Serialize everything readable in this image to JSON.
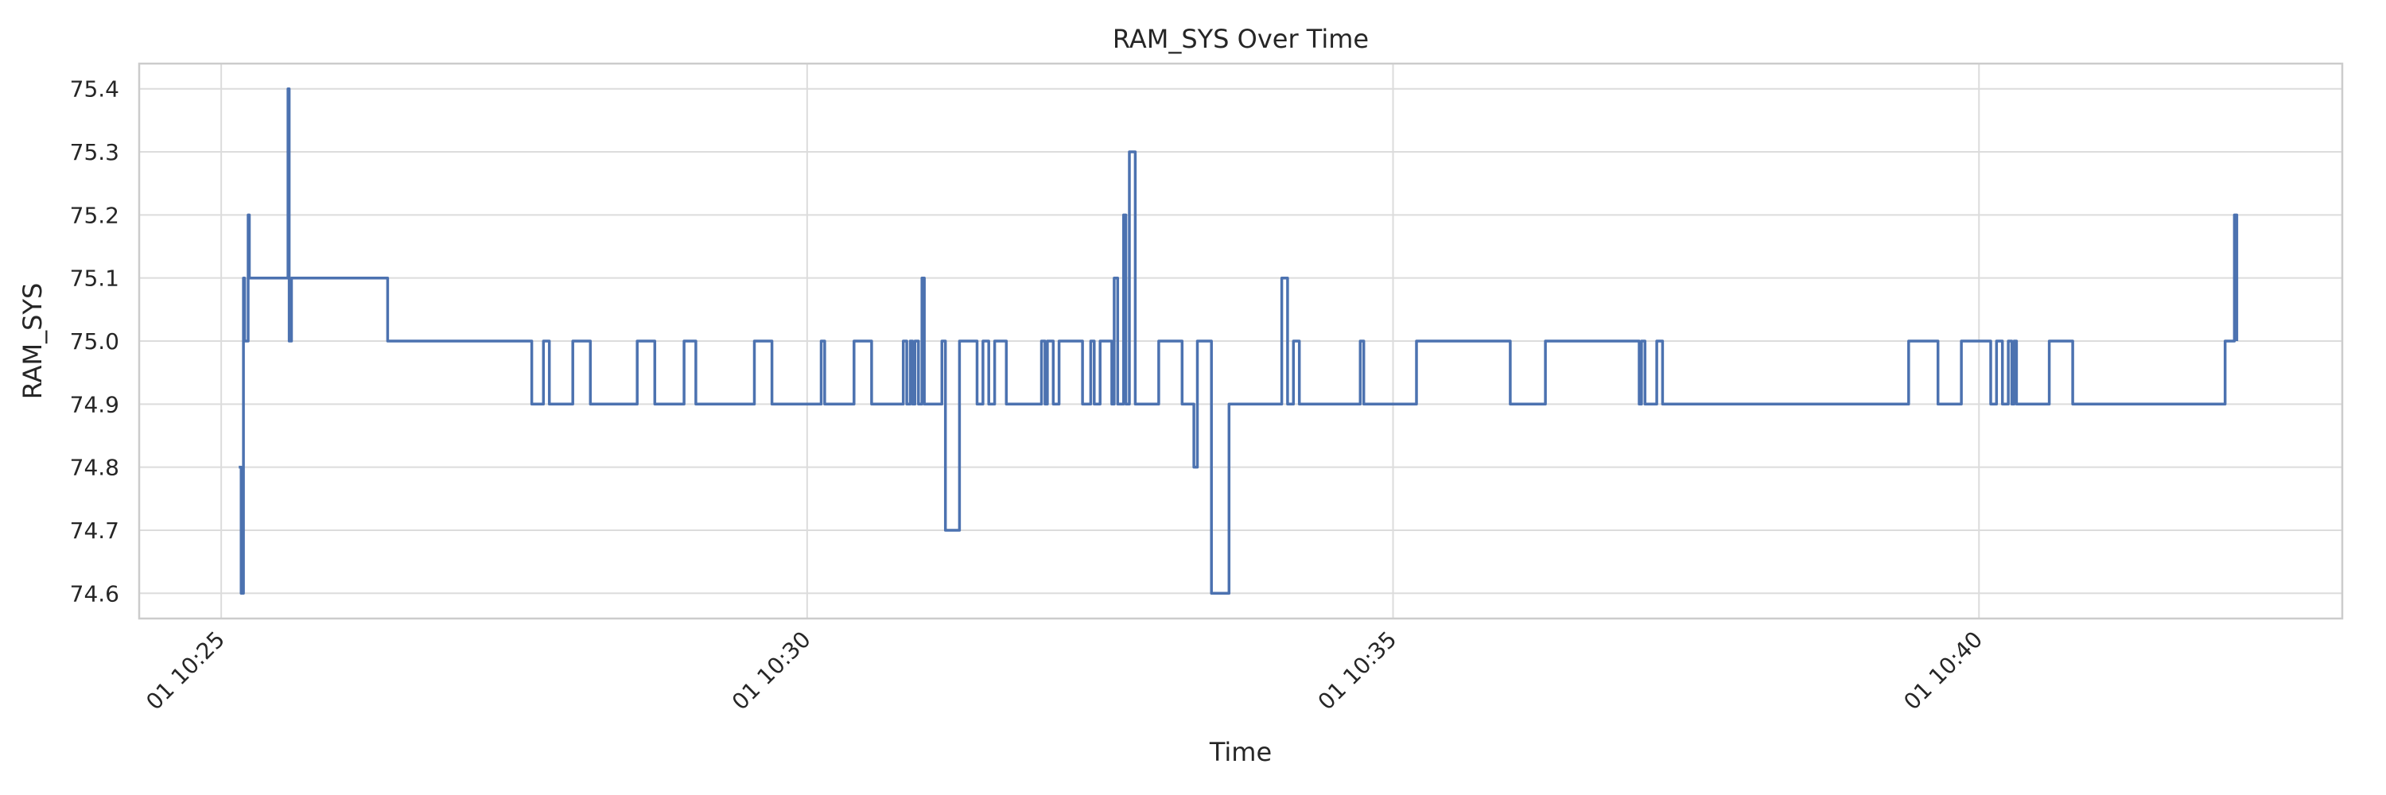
{
  "chart_data": {
    "type": "line",
    "title": "RAM_SYS Over Time",
    "xlabel": "Time",
    "ylabel": "RAM_SYS",
    "ylim": [
      74.56,
      75.44
    ],
    "xlim_minutes": [
      24.3,
      43.1
    ],
    "grid": true,
    "x_ticks": [
      {
        "minute": 25,
        "label": "01 10:25"
      },
      {
        "minute": 30,
        "label": "01 10:30"
      },
      {
        "minute": 35,
        "label": "01 10:35"
      },
      {
        "minute": 40,
        "label": "01 10:40"
      }
    ],
    "y_ticks": [
      74.6,
      74.7,
      74.8,
      74.9,
      75.0,
      75.1,
      75.2,
      75.3,
      75.4
    ],
    "series": [
      {
        "color": "#4c72b0",
        "x_minutes": [
          25.15,
          25.17,
          25.19,
          25.2,
          25.23,
          25.24,
          25.25,
          25.27,
          25.3,
          25.56,
          25.57,
          25.58,
          25.6,
          25.61,
          26.42,
          27.6,
          27.65,
          27.72,
          27.75,
          27.8,
          27.85,
          28.0,
          28.15,
          28.55,
          28.7,
          28.9,
          28.95,
          29.05,
          29.2,
          29.55,
          29.7,
          30.1,
          30.12,
          30.15,
          30.4,
          30.55,
          30.8,
          30.82,
          30.85,
          30.88,
          30.9,
          30.92,
          30.95,
          30.98,
          31.0,
          31.15,
          31.18,
          31.3,
          31.45,
          31.5,
          31.55,
          31.6,
          31.7,
          32.0,
          32.03,
          32.05,
          32.1,
          32.15,
          32.35,
          32.42,
          32.45,
          32.5,
          32.6,
          32.62,
          32.65,
          32.7,
          32.72,
          32.75,
          32.8,
          33.0,
          33.2,
          33.25,
          33.3,
          33.33,
          33.45,
          33.6,
          34.0,
          34.05,
          34.1,
          34.15,
          34.2,
          34.7,
          34.72,
          34.75,
          35.1,
          35.2,
          36.0,
          36.3,
          37.1,
          37.12,
          37.15,
          37.2,
          37.25,
          37.3,
          39.2,
          39.4,
          39.65,
          39.85,
          40.05,
          40.1,
          40.15,
          40.2,
          40.22,
          40.25,
          40.28,
          40.3,
          40.32,
          40.36,
          40.6,
          40.8,
          42.1,
          42.15,
          42.18,
          42.2
        ],
        "y_values": [
          74.8,
          74.6,
          75.1,
          75.0,
          75.2,
          75.1,
          75.1,
          75.1,
          75.1,
          75.1,
          75.4,
          75.0,
          75.1,
          75.1,
          75.0,
          75.0,
          74.9,
          74.9,
          75.0,
          74.9,
          74.9,
          75.0,
          74.9,
          75.0,
          74.9,
          74.9,
          75.0,
          74.9,
          74.9,
          75.0,
          74.9,
          74.9,
          75.0,
          74.9,
          75.0,
          74.9,
          74.9,
          75.0,
          74.9,
          75.0,
          74.9,
          75.0,
          74.9,
          75.1,
          74.9,
          75.0,
          74.7,
          75.0,
          74.9,
          75.0,
          74.9,
          75.0,
          74.9,
          75.0,
          74.9,
          75.0,
          74.9,
          75.0,
          74.9,
          75.0,
          74.9,
          75.0,
          74.9,
          75.1,
          74.9,
          75.2,
          74.9,
          75.3,
          74.9,
          75.0,
          74.9,
          74.9,
          74.8,
          75.0,
          74.6,
          74.9,
          74.9,
          75.1,
          74.9,
          75.0,
          74.9,
          74.9,
          75.0,
          74.9,
          74.9,
          75.0,
          74.9,
          75.0,
          74.9,
          75.0,
          74.9,
          74.9,
          75.0,
          74.9,
          74.9,
          75.0,
          74.9,
          75.0,
          75.0,
          74.9,
          75.0,
          74.9,
          74.9,
          75.0,
          74.9,
          75.0,
          74.9,
          74.9,
          75.0,
          74.9,
          75.0,
          75.0,
          75.2,
          75.0
        ]
      }
    ]
  }
}
